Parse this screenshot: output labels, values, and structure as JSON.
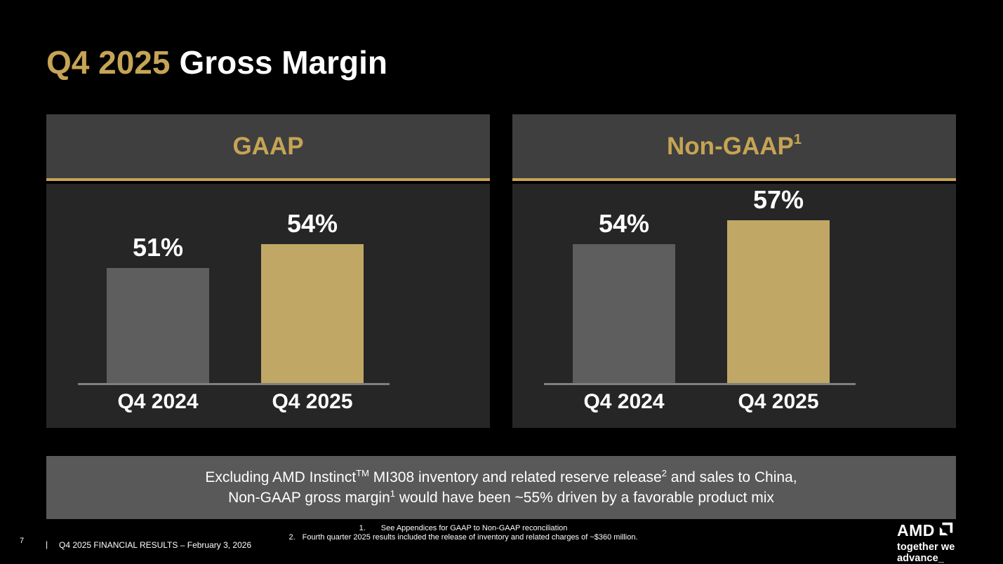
{
  "title": {
    "highlight": "Q4 2025",
    "rest": "Gross Margin"
  },
  "chart_data": [
    {
      "type": "bar",
      "title": "GAAP",
      "title_superscript": "",
      "categories": [
        "Q4 2024",
        "Q4 2025"
      ],
      "values": [
        51,
        54
      ],
      "data_labels": [
        "51%",
        "54%"
      ],
      "unit": "percent gross margin",
      "bar_colors": [
        "#5E5E5E",
        "#C0A766"
      ],
      "ylim": [
        38,
        60
      ],
      "grid": false,
      "legend": false
    },
    {
      "type": "bar",
      "title": "Non-GAAP",
      "title_superscript": "1",
      "categories": [
        "Q4 2024",
        "Q4 2025"
      ],
      "values": [
        54,
        57
      ],
      "data_labels": [
        "54%",
        "57%"
      ],
      "unit": "percent gross margin",
      "bar_colors": [
        "#5E5E5E",
        "#C0A766"
      ],
      "ylim": [
        38,
        60
      ],
      "grid": false,
      "legend": false
    }
  ],
  "note": {
    "line1": [
      {
        "t": "Excluding AMD Instinct"
      },
      {
        "t": "TM",
        "sup": true
      },
      {
        "t": " MI308 inventory and related reserve release"
      },
      {
        "t": "2",
        "sup": true
      },
      {
        "t": " and sales to China,"
      }
    ],
    "line2": [
      {
        "t": "Non-GAAP gross margin"
      },
      {
        "t": "1",
        "sup": true
      },
      {
        "t": " would have been ~55% driven by a favorable product mix"
      }
    ]
  },
  "footnotes": [
    {
      "num": "1.",
      "text": "See Appendices for GAAP to Non-GAAP reconciliation"
    },
    {
      "num": "2.",
      "text": "Fourth quarter 2025 results included the release of inventory and related charges of ~$360 million."
    }
  ],
  "footer": {
    "page_number": "7",
    "separator": "|",
    "text": "Q4 2025 FINANCIAL RESULTS – February 3, 2026"
  },
  "logo": {
    "brand": "AMD",
    "tagline": "together we advance_"
  },
  "colors": {
    "accent_gold": "#C6A455",
    "bar_gold": "#C0A766",
    "bar_gray": "#5E5E5E",
    "panel_header_bg": "#3F3F3F",
    "panel_body_bg": "#262626",
    "note_bg": "#595959",
    "axis_line": "#7F7F7F",
    "background": "#000000"
  }
}
